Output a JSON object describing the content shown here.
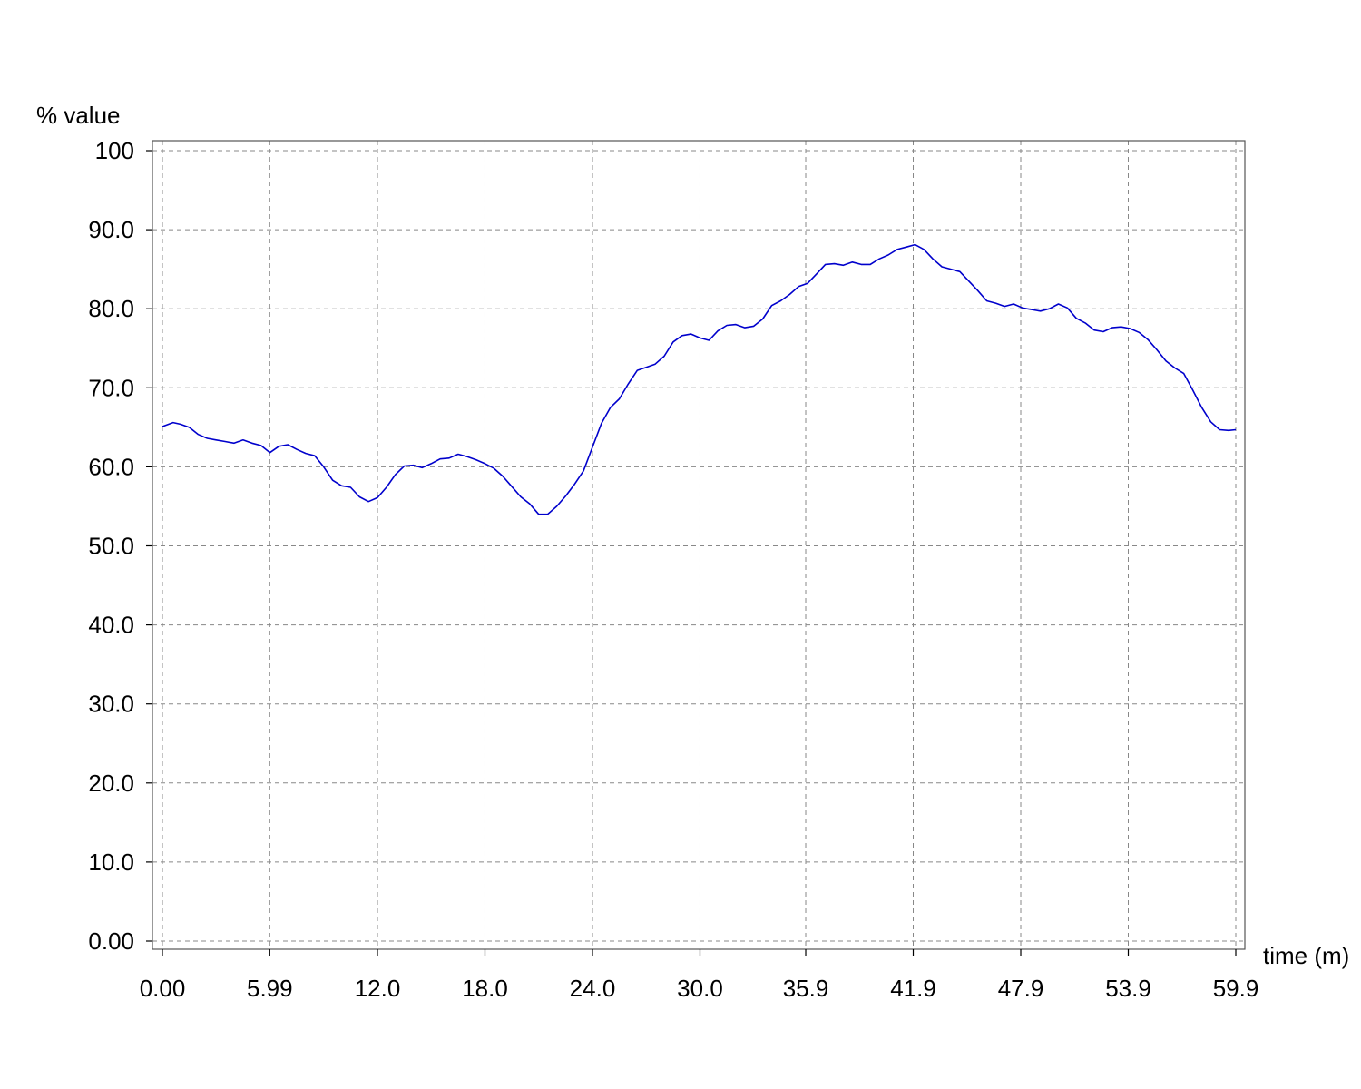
{
  "chart_data": {
    "type": "line",
    "title": "",
    "xlabel": "time (m)",
    "ylabel": "% value",
    "xlim": [
      0,
      59.9
    ],
    "ylim": [
      0,
      100
    ],
    "grid": true,
    "legend": "none",
    "x_tick_values": [
      0,
      5.99,
      12.0,
      18.0,
      24.0,
      30.0,
      35.9,
      41.9,
      47.9,
      53.9,
      59.9
    ],
    "x_tick_labels": [
      "0.00",
      "5.99",
      "12.0",
      "18.0",
      "24.0",
      "30.0",
      "35.9",
      "41.9",
      "47.9",
      "53.9",
      "59.9"
    ],
    "y_tick_values": [
      0,
      10,
      20,
      30,
      40,
      50,
      60,
      70,
      80,
      90,
      100
    ],
    "y_tick_labels": [
      "0.00",
      "10.0",
      "20.0",
      "30.0",
      "40.0",
      "50.0",
      "60.0",
      "70.0",
      "80.0",
      "90.0",
      "100"
    ],
    "series": [
      {
        "color": "#0000cc",
        "x": [
          0,
          0.6,
          1.0,
          1.5,
          2.0,
          2.5,
          3.0,
          3.5,
          4.0,
          4.5,
          5.0,
          5.5,
          6.0,
          6.5,
          7.0,
          7.5,
          8.0,
          8.5,
          9.0,
          9.5,
          10.0,
          10.5,
          11.0,
          11.5,
          12.0,
          12.5,
          13.0,
          13.5,
          14.0,
          14.5,
          15.0,
          15.5,
          16.0,
          16.5,
          17.0,
          17.5,
          18.0,
          18.5,
          19.0,
          19.5,
          20.0,
          20.5,
          21.0,
          21.5,
          22.0,
          22.5,
          23.0,
          23.5,
          24.0,
          24.5,
          25.0,
          25.5,
          26.0,
          26.5,
          27.0,
          27.5,
          28.0,
          28.5,
          29.0,
          29.5,
          30.0,
          30.5,
          31.0,
          31.5,
          32.0,
          32.5,
          33.0,
          33.5,
          34.0,
          34.5,
          35.0,
          35.5,
          36.0,
          36.5,
          37.0,
          37.5,
          38.0,
          38.5,
          39.0,
          39.5,
          40.0,
          40.5,
          41.0,
          41.5,
          42.0,
          42.5,
          43.0,
          43.5,
          44.0,
          44.5,
          45.0,
          45.5,
          46.0,
          46.5,
          47.0,
          47.5,
          48.0,
          48.5,
          49.0,
          49.5,
          50.0,
          50.5,
          51.0,
          51.5,
          52.0,
          52.5,
          53.0,
          53.5,
          54.0,
          54.5,
          55.0,
          55.5,
          56.0,
          56.5,
          57.0,
          57.5,
          58.0,
          58.5,
          59.0,
          59.5,
          59.9
        ],
        "y": [
          65.1,
          65.6,
          65.4,
          65.0,
          64.1,
          63.6,
          63.4,
          63.2,
          63.0,
          63.4,
          63.0,
          62.7,
          61.8,
          62.6,
          62.8,
          62.2,
          61.7,
          61.4,
          60.0,
          58.3,
          57.6,
          57.4,
          56.2,
          55.6,
          56.1,
          57.4,
          59.0,
          60.1,
          60.2,
          59.9,
          60.4,
          61.0,
          61.1,
          61.6,
          61.3,
          60.9,
          60.4,
          59.8,
          58.8,
          57.5,
          56.2,
          55.3,
          54.0,
          54.0,
          55.0,
          56.3,
          57.8,
          59.5,
          62.5,
          65.5,
          67.5,
          68.6,
          70.5,
          72.2,
          72.6,
          73.0,
          74.0,
          75.8,
          76.6,
          76.8,
          76.3,
          76.0,
          77.2,
          77.9,
          78.0,
          77.6,
          77.8,
          78.7,
          80.4,
          81.0,
          81.8,
          82.8,
          83.2,
          84.4,
          85.6,
          85.7,
          85.5,
          85.9,
          85.6,
          85.6,
          86.3,
          86.8,
          87.5,
          87.8,
          88.1,
          87.5,
          86.3,
          85.3,
          85.0,
          84.7,
          83.5,
          82.3,
          81.0,
          80.7,
          80.3,
          80.6,
          80.1,
          79.9,
          79.7,
          80.0,
          80.6,
          80.1,
          78.8,
          78.2,
          77.3,
          77.1,
          77.6,
          77.7,
          77.5,
          77.0,
          76.1,
          74.8,
          73.4,
          72.5,
          71.8,
          69.7,
          67.5,
          65.7,
          64.7,
          64.6,
          64.7
        ]
      }
    ]
  }
}
